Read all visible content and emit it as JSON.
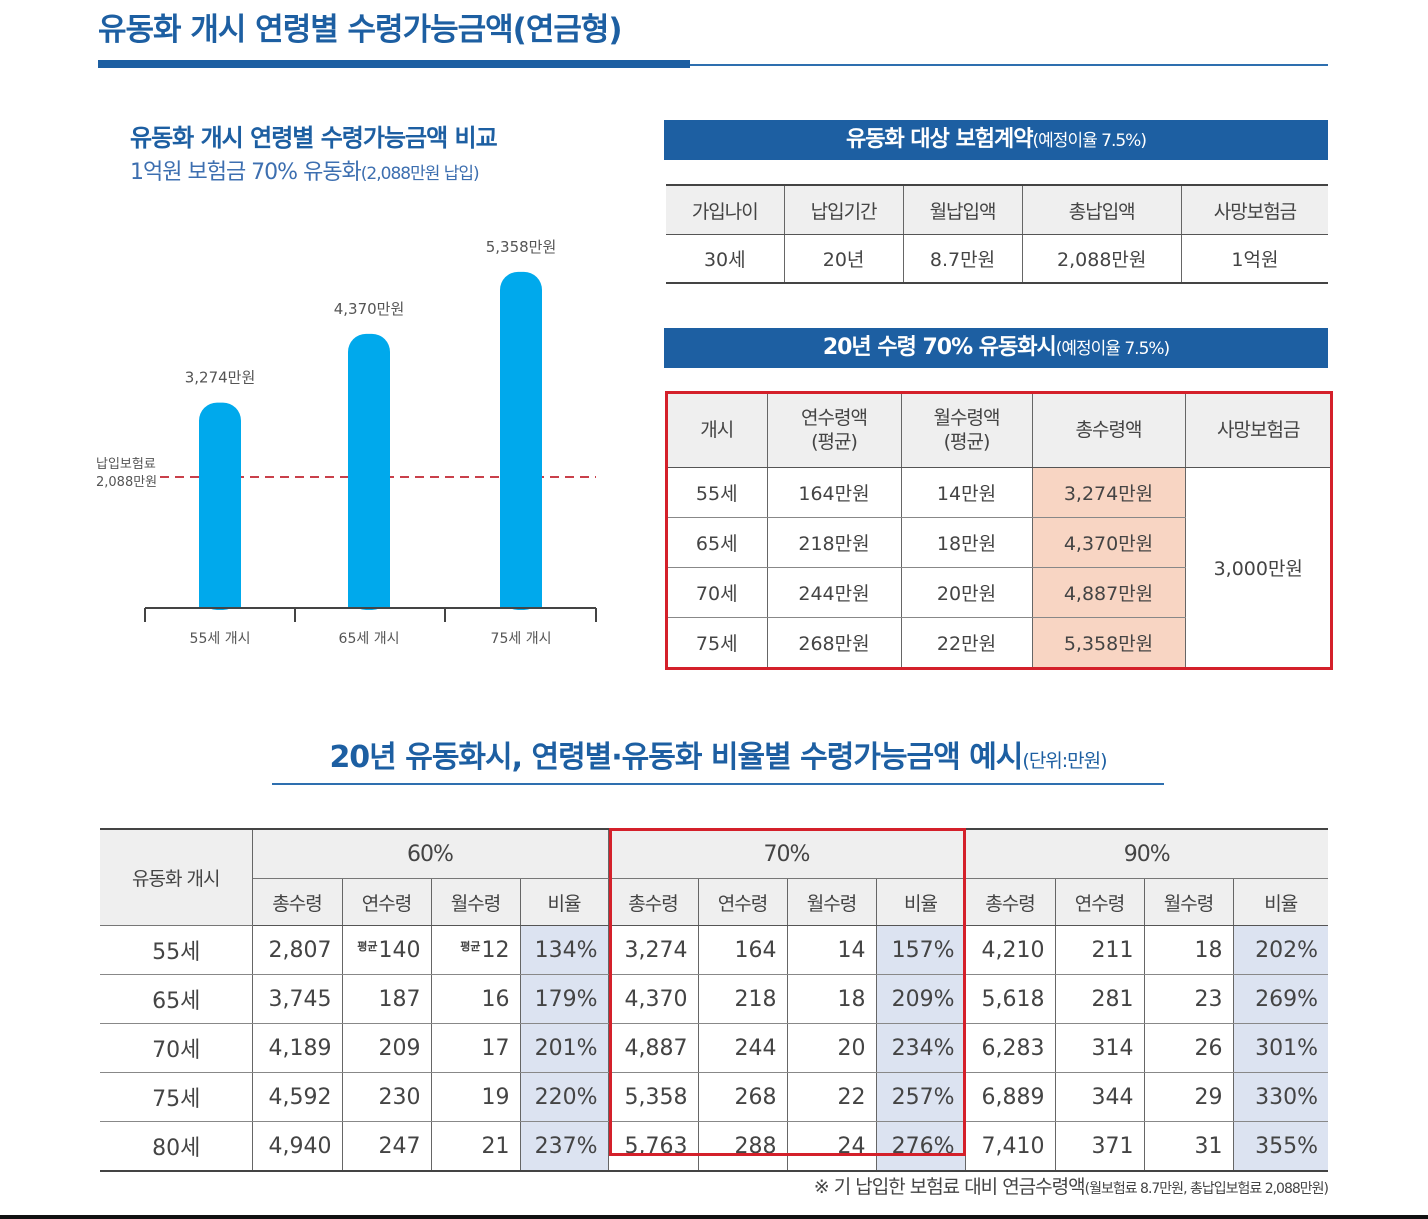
{
  "page": {
    "title": "유동화 개시 연령별 수령가능금액(연금형)"
  },
  "colors": {
    "brand_blue": "#1d5fa2",
    "bar_blue": "#00a9ec",
    "highlight_red": "#d4202a",
    "total_cell": "#f8d5c3",
    "ratio_cell": "#dce3f1"
  },
  "chart": {
    "title": "유동화 개시 연령별 수령가능금액 비교",
    "subtitle_main": "1억원 보험금 70% 유동화",
    "subtitle_note": "(2,088만원 납입)"
  },
  "chart_data": {
    "type": "bar",
    "title": "유동화 개시 연령별 수령가능금액 비교",
    "categories": [
      "55세 개시",
      "65세 개시",
      "75세 개시"
    ],
    "values": [
      3274,
      4370,
      5358
    ],
    "value_labels": [
      "3,274만원",
      "4,370만원",
      "5,358만원"
    ],
    "reference_line": {
      "value": 2088,
      "label_line1": "납입보험료",
      "label_line2": "2,088만원"
    },
    "ylim": [
      0,
      5500
    ],
    "unit": "만원",
    "grid": false,
    "legend": "none"
  },
  "contract": {
    "banner_main": "유동화 대상 보험계약",
    "banner_note": "(예정이율 7.5%)",
    "headers": [
      "가입나이",
      "납입기간",
      "월납입액",
      "총납입액",
      "사망보험금"
    ],
    "row": [
      "30세",
      "20년",
      "8.7만원",
      "2,088만원",
      "1억원"
    ]
  },
  "annuity": {
    "banner_main": "20년 수령 70% 유동화시",
    "banner_note": "(예정이율 7.5%)",
    "headers": {
      "start": "개시",
      "annual_1": "연수령액",
      "annual_2": "(평균)",
      "monthly_1": "월수령액",
      "monthly_2": "(평균)",
      "total": "총수령액",
      "death": "사망보험금"
    },
    "rows": [
      {
        "age": "55세",
        "annual": "164만원",
        "monthly": "14만원",
        "total": "3,274만원"
      },
      {
        "age": "65세",
        "annual": "218만원",
        "monthly": "18만원",
        "total": "4,370만원"
      },
      {
        "age": "70세",
        "annual": "244만원",
        "monthly": "20만원",
        "total": "4,887만원"
      },
      {
        "age": "75세",
        "annual": "268만원",
        "monthly": "22만원",
        "total": "5,358만원"
      }
    ],
    "death_benefit": "3,000만원"
  },
  "examples": {
    "title_main": "20년 유동화시, 연령별·유동화 비율별 수령가능금액 예시",
    "title_unit": "(단위:만원)",
    "row_header": "유동화 개시",
    "groups": [
      "60%",
      "70%",
      "90%"
    ],
    "sub_headers": [
      "총수령",
      "연수령",
      "월수령",
      "비율"
    ],
    "badge": "평균",
    "rows": [
      {
        "age": "55세",
        "g60": [
          "2,807",
          "140",
          "12",
          "134%"
        ],
        "g70": [
          "3,274",
          "164",
          "14",
          "157%"
        ],
        "g90": [
          "4,210",
          "211",
          "18",
          "202%"
        ]
      },
      {
        "age": "65세",
        "g60": [
          "3,745",
          "187",
          "16",
          "179%"
        ],
        "g70": [
          "4,370",
          "218",
          "18",
          "209%"
        ],
        "g90": [
          "5,618",
          "281",
          "23",
          "269%"
        ]
      },
      {
        "age": "70세",
        "g60": [
          "4,189",
          "209",
          "17",
          "201%"
        ],
        "g70": [
          "4,887",
          "244",
          "20",
          "234%"
        ],
        "g90": [
          "6,283",
          "314",
          "26",
          "301%"
        ]
      },
      {
        "age": "75세",
        "g60": [
          "4,592",
          "230",
          "19",
          "220%"
        ],
        "g70": [
          "5,358",
          "268",
          "22",
          "257%"
        ],
        "g90": [
          "6,889",
          "344",
          "29",
          "330%"
        ]
      },
      {
        "age": "80세",
        "g60": [
          "4,940",
          "247",
          "21",
          "237%"
        ],
        "g70": [
          "5,763",
          "288",
          "24",
          "276%"
        ],
        "g90": [
          "7,410",
          "371",
          "31",
          "355%"
        ]
      }
    ]
  },
  "footnote": {
    "main": "※ 기 납입한 보험료 대비 연금수령액",
    "note": "(월보험료 8.7만원, 총납입보험료 2,088만원)"
  }
}
